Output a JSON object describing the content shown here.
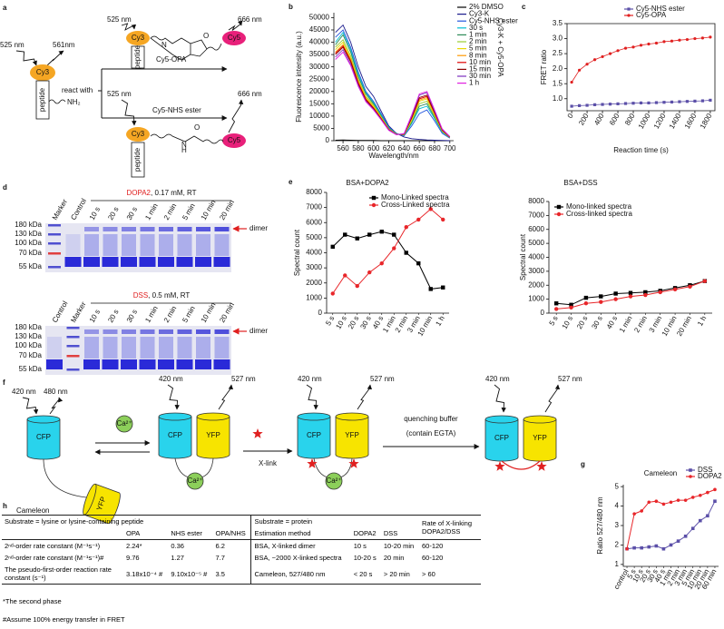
{
  "panel_a": {
    "label": "a",
    "wl_in": "525 nm",
    "wl_out": "561nm",
    "dye": "Cy3",
    "substrate": "peptide",
    "amine": "NH₂",
    "react": "react with",
    "reagent_1": "Cy5-OPA",
    "reagent_2": "Cy5-NHS ester",
    "product_1": {
      "wl_in": "525 nm",
      "wl_out": "666 nm",
      "donor": "Cy3",
      "acceptor": "Cy5",
      "substrate": "peptide",
      "atoms": [
        "N",
        "O"
      ]
    },
    "product_2": {
      "wl_in": "525 nm",
      "wl_out": "666 nm",
      "donor": "Cy3",
      "acceptor": "Cy5",
      "substrate": "peptide",
      "atoms": [
        "H",
        "N",
        "O"
      ]
    }
  },
  "chart_data": [
    {
      "type": "line",
      "panel": "b",
      "xlabel": "Wavelength/nm",
      "ylabel": "Fluorescence intensity (a.u.)",
      "annotation": "Cy3-K + Cy5-OPA",
      "x": [
        550,
        560,
        570,
        580,
        590,
        600,
        610,
        620,
        630,
        640,
        650,
        660,
        670,
        680,
        690,
        700
      ],
      "xlim": [
        548,
        705
      ],
      "xticks": [
        560,
        580,
        600,
        620,
        640,
        660,
        680,
        700
      ],
      "ylim": [
        0,
        52000
      ],
      "yticks": [
        0,
        5000,
        10000,
        15000,
        20000,
        25000,
        30000,
        35000,
        40000,
        45000,
        50000
      ],
      "legend": "outside right",
      "markers": false,
      "series": [
        {
          "name": "2% DMSO",
          "color": "#000000",
          "values": [
            200,
            300,
            200,
            100,
            100,
            100,
            0,
            0,
            0,
            0,
            0,
            0,
            0,
            0,
            0,
            0
          ]
        },
        {
          "name": "Cy3-K",
          "color": "#1a1a8c",
          "values": [
            44000,
            47000,
            40000,
            30000,
            22000,
            18000,
            12000,
            6000,
            3000,
            1500,
            800,
            500,
            300,
            200,
            100,
            0
          ]
        },
        {
          "name": "Cy5-NHS ester",
          "color": "#2255dd",
          "values": [
            42000,
            45000,
            38000,
            28000,
            20000,
            16000,
            11000,
            5500,
            3000,
            2000,
            6000,
            11000,
            12500,
            8000,
            3000,
            1000
          ]
        },
        {
          "name": "30 s",
          "color": "#00bcd4",
          "values": [
            40000,
            44000,
            37000,
            27000,
            19500,
            15500,
            10500,
            5200,
            2800,
            2200,
            7000,
            13000,
            14000,
            9000,
            3500,
            1200
          ]
        },
        {
          "name": "1 min",
          "color": "#2e8b57",
          "values": [
            39000,
            43000,
            36000,
            26000,
            19000,
            15000,
            10000,
            5000,
            2800,
            2300,
            7500,
            14000,
            15000,
            9500,
            3700,
            1300
          ]
        },
        {
          "name": "2 min",
          "color": "#9acd32",
          "values": [
            38000,
            41000,
            34500,
            25000,
            18000,
            14500,
            9700,
            4800,
            2700,
            2400,
            8000,
            15000,
            16000,
            10000,
            3900,
            1300
          ]
        },
        {
          "name": "5 min",
          "color": "#e8d800",
          "values": [
            37000,
            40000,
            33500,
            24500,
            17500,
            14000,
            9500,
            4700,
            2600,
            2500,
            8500,
            16000,
            17000,
            10500,
            4000,
            1400
          ]
        },
        {
          "name": "8 min",
          "color": "#ff9900",
          "values": [
            36000,
            39000,
            33000,
            24000,
            17000,
            13500,
            9200,
            4600,
            2600,
            2600,
            9000,
            16500,
            17500,
            11000,
            4200,
            1400
          ]
        },
        {
          "name": "10 min",
          "color": "#e00000",
          "values": [
            35500,
            38500,
            32500,
            23500,
            16800,
            13300,
            9000,
            4500,
            2500,
            2600,
            9200,
            17000,
            18000,
            11200,
            4300,
            1500
          ]
        },
        {
          "name": "15 min",
          "color": "#8b0000",
          "values": [
            35000,
            38000,
            32000,
            23000,
            16500,
            13000,
            8800,
            4400,
            2500,
            2700,
            9500,
            17500,
            18500,
            11500,
            4400,
            1500
          ]
        },
        {
          "name": "30 min",
          "color": "#7b2fbe",
          "values": [
            34000,
            37000,
            31000,
            22500,
            16000,
            12700,
            8600,
            4300,
            2500,
            2800,
            10000,
            18500,
            19500,
            12000,
            4600,
            1600
          ]
        },
        {
          "name": "1 h",
          "color": "#e020e0",
          "values": [
            33000,
            36000,
            30500,
            22000,
            15800,
            12500,
            8500,
            4200,
            2400,
            2900,
            10500,
            19000,
            20000,
            12500,
            4800,
            1700
          ]
        }
      ]
    },
    {
      "type": "line",
      "panel": "c",
      "xlabel": "Reaction time (s)",
      "ylabel": "FRET ratio",
      "x": [
        0,
        100,
        200,
        300,
        400,
        500,
        600,
        700,
        800,
        900,
        1000,
        1100,
        1200,
        1300,
        1400,
        1500,
        1600,
        1700,
        1800
      ],
      "xlim": [
        -60,
        1860
      ],
      "xticks": [
        0,
        200,
        400,
        600,
        800,
        1000,
        1200,
        1400,
        1600,
        1800
      ],
      "ylim": [
        0.6,
        3.5
      ],
      "yticks": [
        {
          "value": 1,
          "label": "1.0"
        },
        1.5,
        {
          "value": 2,
          "label": "2.0"
        },
        2.5,
        {
          "value": 3,
          "label": "3.0"
        },
        3.5
      ],
      "legend": "top right",
      "markers": true,
      "series": [
        {
          "name": "Cy5-NHS ester",
          "color": "#5b4fa8",
          "marker": "square",
          "values": [
            0.75,
            0.77,
            0.78,
            0.8,
            0.81,
            0.82,
            0.83,
            0.84,
            0.85,
            0.86,
            0.86,
            0.87,
            0.88,
            0.89,
            0.9,
            0.91,
            0.92,
            0.93,
            0.95
          ]
        },
        {
          "name": "Cy5-OPA",
          "color": "#e02020",
          "marker": "circle",
          "values": [
            1.55,
            1.95,
            2.15,
            2.3,
            2.4,
            2.5,
            2.6,
            2.68,
            2.72,
            2.78,
            2.82,
            2.85,
            2.9,
            2.92,
            2.95,
            2.97,
            3.0,
            3.02,
            3.05
          ]
        }
      ]
    },
    {
      "type": "line",
      "panel": "e",
      "title": "BSA+DOPA2",
      "ylabel": "Spectral count",
      "categories": [
        "5 s",
        "10 s",
        "20 s",
        "30 s",
        "40 s",
        "1 min",
        "2 min",
        "3 min",
        "10 min",
        "1 h"
      ],
      "ylim": [
        0,
        8000
      ],
      "yticks": [
        0,
        1000,
        2000,
        3000,
        4000,
        5000,
        6000,
        7000,
        8000
      ],
      "legend": "upper right",
      "markers": true,
      "series": [
        {
          "name": "Mono-Linked spectra",
          "color": "#000000",
          "marker": "square",
          "values": [
            4400,
            5200,
            4950,
            5200,
            5400,
            5200,
            4000,
            3300,
            1600,
            1700
          ]
        },
        {
          "name": "Cross-Linked spectra",
          "color": "#e8262a",
          "marker": "circle",
          "values": [
            1300,
            2500,
            1800,
            2700,
            3300,
            4300,
            5700,
            6200,
            6900,
            6200
          ]
        }
      ]
    },
    {
      "type": "line",
      "title": "BSA+DSS",
      "ylabel": "Spectral count",
      "categories": [
        "5 s",
        "10 s",
        "20 s",
        "30 s",
        "40 s",
        "1 min",
        "2 min",
        "3 min",
        "10 min",
        "20 min",
        "1 h"
      ],
      "ylim": [
        0,
        8000
      ],
      "yticks": [
        0,
        1000,
        2000,
        3000,
        4000,
        5000,
        6000,
        7000,
        8000
      ],
      "legend": "upper left",
      "markers": true,
      "series": [
        {
          "name": "Mono-linked spectra",
          "color": "#000000",
          "marker": "square",
          "values": [
            700,
            600,
            1100,
            1200,
            1400,
            1450,
            1500,
            1600,
            1800,
            2000,
            2300
          ]
        },
        {
          "name": "Cross-linked spectra",
          "color": "#e8262a",
          "marker": "circle",
          "values": [
            300,
            400,
            700,
            800,
            1000,
            1200,
            1300,
            1500,
            1700,
            1900,
            2300
          ]
        }
      ]
    },
    {
      "type": "line",
      "panel": "g",
      "title": "Cameleon",
      "ylabel": "Ratio 527/480 nm",
      "categories": [
        "control",
        "5 s",
        "10 s",
        "20 s",
        "30 s",
        "40 s",
        "1 min",
        "2 min",
        "3 min",
        "5 min",
        "10 min",
        "20 min",
        "60 min"
      ],
      "ylim": [
        0.9,
        5.1
      ],
      "yticks": [
        1,
        2,
        3,
        4,
        5
      ],
      "legend": "top right",
      "markers": true,
      "series": [
        {
          "name": "DSS",
          "color": "#5b4fa8",
          "marker": "square",
          "values": [
            1.8,
            1.85,
            1.85,
            1.9,
            1.95,
            1.8,
            2.0,
            2.2,
            2.45,
            2.85,
            3.25,
            3.5,
            4.25
          ]
        },
        {
          "name": "DOPA2",
          "color": "#e8262a",
          "marker": "circle",
          "values": [
            1.8,
            3.6,
            3.75,
            4.2,
            4.25,
            4.1,
            4.2,
            4.3,
            4.3,
            4.45,
            4.55,
            4.7,
            4.85
          ]
        }
      ]
    }
  ],
  "panel_d": {
    "label": "d",
    "gels": [
      {
        "reagent": "DOPA2",
        "condition": ", 0.17 mM, RT",
        "lanes": [
          "Marker",
          "Control",
          "10 s",
          "20 s",
          "30 s",
          "1 min",
          "2 min",
          "5 min",
          "10 min",
          "20 min"
        ],
        "sizes": [
          "180 kDa",
          "130 kDa",
          "100 kDa",
          "70 kDa",
          "55 kDa"
        ],
        "band": "dimer"
      },
      {
        "reagent": "DSS",
        "condition": ", 0.5 mM, RT",
        "lanes": [
          "Control",
          "Marker",
          "10 s",
          "20 s",
          "30 s",
          "1 min",
          "2 min",
          "5 min",
          "10 min",
          "20 min"
        ],
        "sizes": [
          "180 kDa",
          "130 kDa",
          "100 kDa",
          "70 kDa",
          "55 kDa"
        ],
        "band": "dimer"
      }
    ]
  },
  "panel_f": {
    "label": "f",
    "wl_excite": "420 nm",
    "wl_cfp": "480 nm",
    "wl_fret": "527 nm",
    "cfp": "CFP",
    "yfp": "YFP",
    "calcium": "Ca²⁺",
    "protein": "Cameleon",
    "xlink": "X-link",
    "quench": "quenching buffer",
    "quench_note": "(contain EGTA)"
  },
  "table_h": {
    "label": "h",
    "header_left": "Substrate = lysine or lysine-containing peptide",
    "header_right": "Substrate = protein",
    "columns": [
      "OPA",
      "NHS ester",
      "OPA/NHS",
      "Estimation method",
      "DOPA2",
      "DSS",
      "Rate of X-linking DOPA2/DSS"
    ],
    "rows": [
      [
        "2ⁿᵈ-order rate constant (M⁻¹s⁻¹)",
        "2.24*",
        "0.36",
        "6.2",
        "BSA, X-linked dimer",
        "10 s",
        "10-20 min",
        "60-120"
      ],
      [
        "2ⁿᵈ-order rate constant (M⁻¹s⁻¹)#",
        "9.76",
        "1.27",
        "7.7",
        "BSA, ~2000 X-linked spectra",
        "10-20 s",
        "20 min",
        "60-120"
      ],
      [
        "The pseudo-first-order reaction rate constant (s⁻¹)",
        "3.18x10⁻⁴ #",
        "9.10x10⁻⁵ #",
        "3.5",
        "Cameleon, 527/480 nm",
        "< 20 s",
        "> 20 min",
        "> 60"
      ]
    ]
  },
  "footnotes": [
    "*The second phase",
    "#Assume 100% energy transfer in FRET"
  ]
}
